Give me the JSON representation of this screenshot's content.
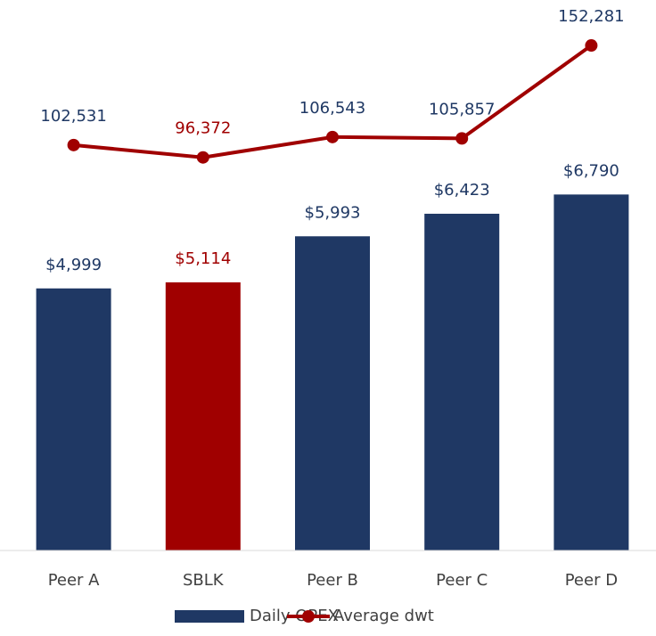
{
  "chart_data": {
    "type": "bar_line",
    "categories": [
      "Peer A",
      "SBLK",
      "Peer B",
      "Peer C",
      "Peer D"
    ],
    "series": [
      {
        "name": "Daily OPEX",
        "type": "bar",
        "color": "#1f3864",
        "point_colors": [
          "#1f3864",
          "#a00000",
          "#1f3864",
          "#1f3864",
          "#1f3864"
        ],
        "values": [
          4999,
          5114,
          5993,
          6423,
          6790
        ],
        "value_labels": [
          "$4,999",
          "$5,114",
          "$5,993",
          "$6,423",
          "$6,790"
        ]
      },
      {
        "name": "Average dwt",
        "type": "line",
        "axis": "y2",
        "color": "#a00000",
        "label_colors": [
          "#1f3864",
          "#a00000",
          "#1f3864",
          "#1f3864",
          "#1f3864"
        ],
        "values": [
          102531,
          96372,
          106543,
          105857,
          152281
        ],
        "value_labels": [
          "102,531",
          "96,372",
          "106,543",
          "105,857",
          "152,281"
        ]
      }
    ],
    "ylim": [
      0,
      10500
    ],
    "y2lim": [
      -100000,
      175000
    ],
    "legend": "bottom"
  }
}
